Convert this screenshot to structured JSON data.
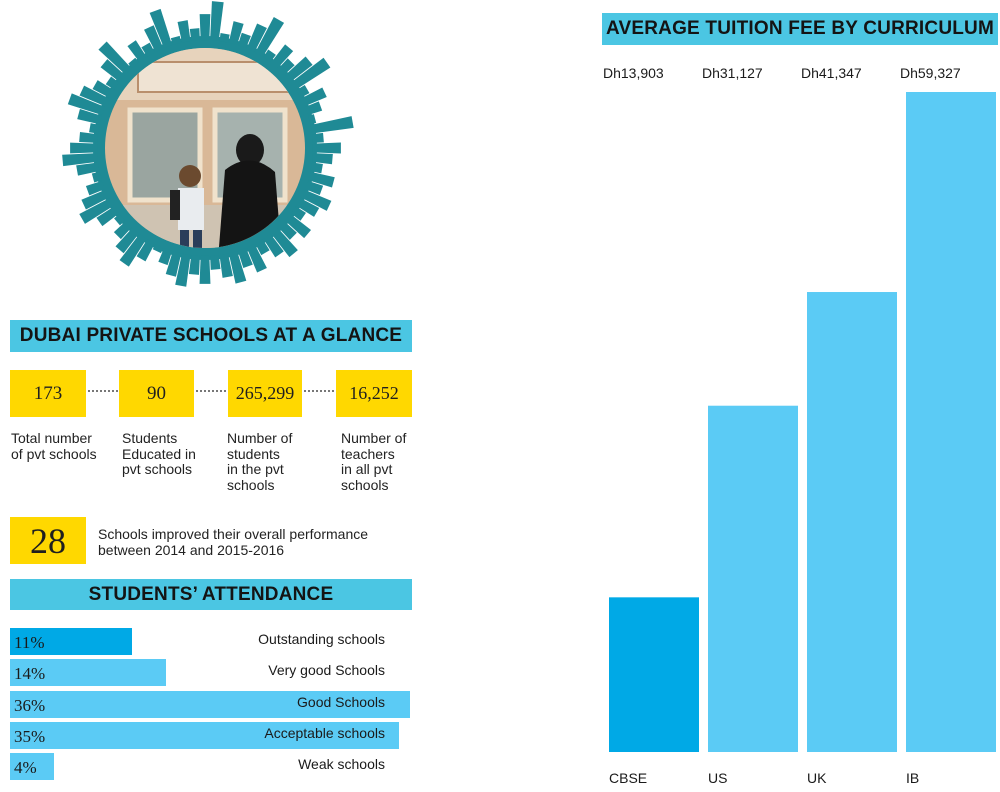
{
  "glance": {
    "title": "DUBAI PRIVATE SCHOOLS AT A GLANCE",
    "stats": [
      {
        "value": "173",
        "label_lines": [
          "Total number",
          "of pvt schools"
        ]
      },
      {
        "value": "90",
        "label_lines": [
          "Students",
          "Educated in",
          "pvt schools"
        ]
      },
      {
        "value": "265,299",
        "label_lines": [
          "Number of",
          "students",
          "in the pvt",
          "schools"
        ]
      },
      {
        "value": "16,252",
        "label_lines": [
          "Number of",
          "teachers",
          "in all pvt",
          "schools"
        ]
      }
    ],
    "improved": {
      "value": "28",
      "text_lines": [
        "Schools improved their overall performance",
        "between 2014 and 2015-2016"
      ]
    }
  },
  "attendance": {
    "title": "STUDENTS’ ATTENDANCE",
    "rows": [
      {
        "pct": "11%",
        "value": 11,
        "label": "Outstanding schools",
        "color": "#00a9e6"
      },
      {
        "pct": "14%",
        "value": 14,
        "label": "Very good Schools",
        "color": "#5bcbf5"
      },
      {
        "pct": "36%",
        "value": 36,
        "label": "Good Schools",
        "color": "#5bcbf5"
      },
      {
        "pct": "35%",
        "value": 35,
        "label": "Acceptable schools",
        "color": "#5bcbf5"
      },
      {
        "pct": "4%",
        "value": 4,
        "label": "Weak schools",
        "color": "#5bcbf5"
      }
    ]
  },
  "chart_data": {
    "type": "bar",
    "title": "AVERAGE TUITION FEE BY CURRICULUM",
    "categories": [
      "CBSE",
      "US",
      "UK",
      "IB"
    ],
    "values": [
      13903,
      31127,
      41347,
      59327
    ],
    "value_labels": [
      "Dh13,903",
      "Dh31,127",
      "Dh41,347",
      "Dh59,327"
    ],
    "bar_colors": [
      "#00a9e6",
      "#5bcbf5",
      "#5bcbf5",
      "#5bcbf5"
    ],
    "ylim": [
      0,
      59327
    ],
    "grid": false,
    "legend": "none"
  },
  "colors": {
    "banner": "#4bc6e3",
    "yellow": "#ffd800",
    "teal": "#1f8a95"
  }
}
